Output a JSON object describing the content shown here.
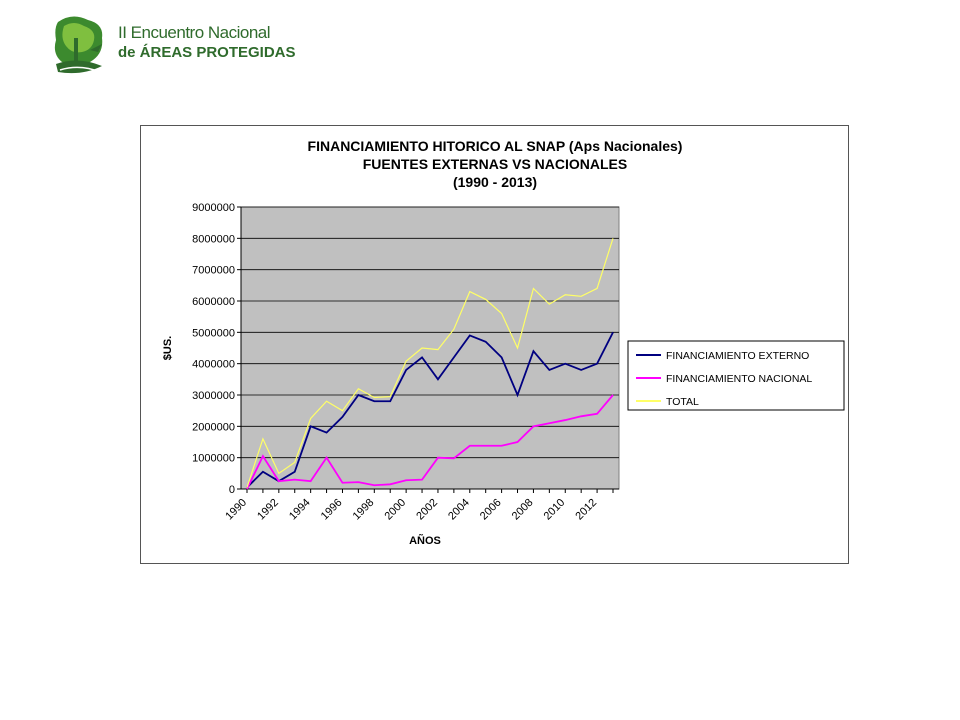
{
  "header": {
    "logo_line1": "II Encuentro Nacional",
    "logo_line2": "de ÁREAS PROTEGIDAS"
  },
  "chart_data": {
    "type": "line",
    "title_lines": [
      "FINANCIAMIENTO HITORICO AL SNAP (Aps Nacionales)",
      "FUENTES EXTERNAS VS NACIONALES",
      "(1990 - 2013)"
    ],
    "xlabel": "AÑOS",
    "ylabel": "$US.",
    "ylim": [
      0,
      9000000
    ],
    "yticks": [
      0,
      1000000,
      2000000,
      3000000,
      4000000,
      5000000,
      6000000,
      7000000,
      8000000,
      9000000
    ],
    "ytick_labels": [
      "0",
      "1000000",
      "2000000",
      "3000000",
      "4000000",
      "5000000",
      "6000000",
      "7000000",
      "8000000",
      "9000000"
    ],
    "x": [
      1990,
      1991,
      1992,
      1993,
      1994,
      1995,
      1996,
      1997,
      1998,
      1999,
      2000,
      2001,
      2002,
      2003,
      2004,
      2005,
      2006,
      2007,
      2008,
      2009,
      2010,
      2011,
      2012,
      2013
    ],
    "xtick_labels": [
      "1990",
      "1992",
      "1994",
      "1996",
      "1998",
      "2000",
      "2002",
      "2004",
      "2006",
      "2008",
      "2010",
      "2012"
    ],
    "xtick_values": [
      1990,
      1992,
      1994,
      1996,
      1998,
      2000,
      2002,
      2004,
      2006,
      2008,
      2010,
      2012
    ],
    "grid": true,
    "plot_background": "#c0c0c0",
    "legend_position": "right",
    "series": [
      {
        "name": "FINANCIAMIENTO EXTERNO",
        "color": "#000080",
        "values": [
          50000,
          550000,
          250000,
          550000,
          2000000,
          1800000,
          2300000,
          3000000,
          2800000,
          2800000,
          3800000,
          4200000,
          3500000,
          4200000,
          4900000,
          4700000,
          4200000,
          3000000,
          4400000,
          3800000,
          4000000,
          3800000,
          4000000,
          5000000
        ]
      },
      {
        "name": "FINANCIAMIENTO NACIONAL",
        "color": "#ff00ff",
        "values": [
          0,
          1050000,
          250000,
          300000,
          250000,
          1000000,
          200000,
          220000,
          120000,
          150000,
          280000,
          300000,
          1000000,
          980000,
          1380000,
          1380000,
          1380000,
          1500000,
          2000000,
          2100000,
          2200000,
          2320000,
          2400000,
          3000000
        ]
      },
      {
        "name": "TOTAL",
        "color": "#ffff66",
        "values": [
          50000,
          1600000,
          500000,
          850000,
          2250000,
          2800000,
          2500000,
          3200000,
          2920000,
          2950000,
          4080000,
          4500000,
          4450000,
          5100000,
          6300000,
          6050000,
          5600000,
          4500000,
          6400000,
          5900000,
          6200000,
          6150000,
          6400000,
          8000000
        ]
      }
    ]
  }
}
